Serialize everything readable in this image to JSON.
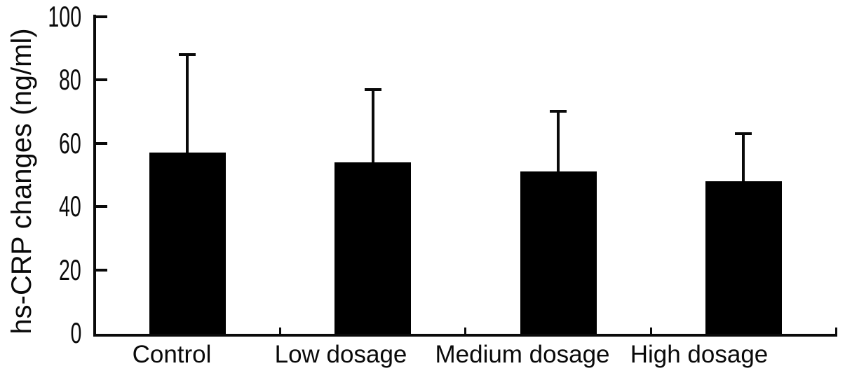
{
  "chart_data": {
    "type": "bar",
    "title": "",
    "xlabel": "",
    "ylabel": "hs-CRP changes (ng/ml)",
    "categories": [
      "Control",
      "Low dosage",
      "Medium dosage",
      "High dosage"
    ],
    "values": [
      57,
      54,
      51,
      48
    ],
    "error_up": [
      31,
      23,
      19,
      15
    ],
    "error_bar_tops": [
      88,
      77,
      70,
      63
    ],
    "error_bar_style": "upper only, capped",
    "yticks": [
      0,
      20,
      40,
      60,
      80,
      100
    ],
    "ylim": [
      0,
      100
    ],
    "grid": "off",
    "legend": "none",
    "bar_color": "#000000",
    "axis_color": "#0a0a0a",
    "background_color": "#ffffff"
  }
}
